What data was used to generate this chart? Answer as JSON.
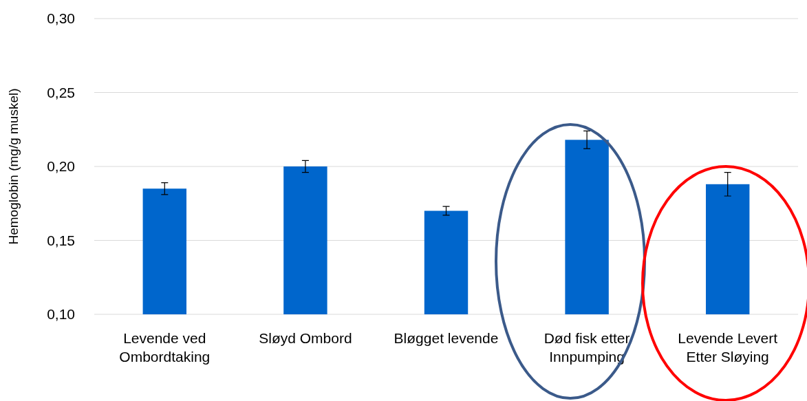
{
  "chart_data": {
    "type": "bar",
    "ylabel": "Hemoglobin (mg/g muskel)",
    "categories": [
      "Levende ved Ombordtaking",
      "Sløyd Ombord",
      "Bløgget levende",
      "Død fisk etter Innpumping",
      "Levende Levert Etter Sløying"
    ],
    "values": [
      0.185,
      0.2,
      0.17,
      0.218,
      0.188
    ],
    "errors": [
      0.004,
      0.004,
      0.003,
      0.006,
      0.008
    ],
    "color": "#0066cc",
    "ylim": [
      0.1,
      0.3
    ],
    "yticks": [
      {
        "value": 0.1,
        "label": "0,10"
      },
      {
        "value": 0.15,
        "label": "0,15"
      },
      {
        "value": 0.2,
        "label": "0,20"
      },
      {
        "value": 0.25,
        "label": "0,25"
      },
      {
        "value": 0.3,
        "label": "0,30"
      }
    ],
    "grid": "y"
  }
}
